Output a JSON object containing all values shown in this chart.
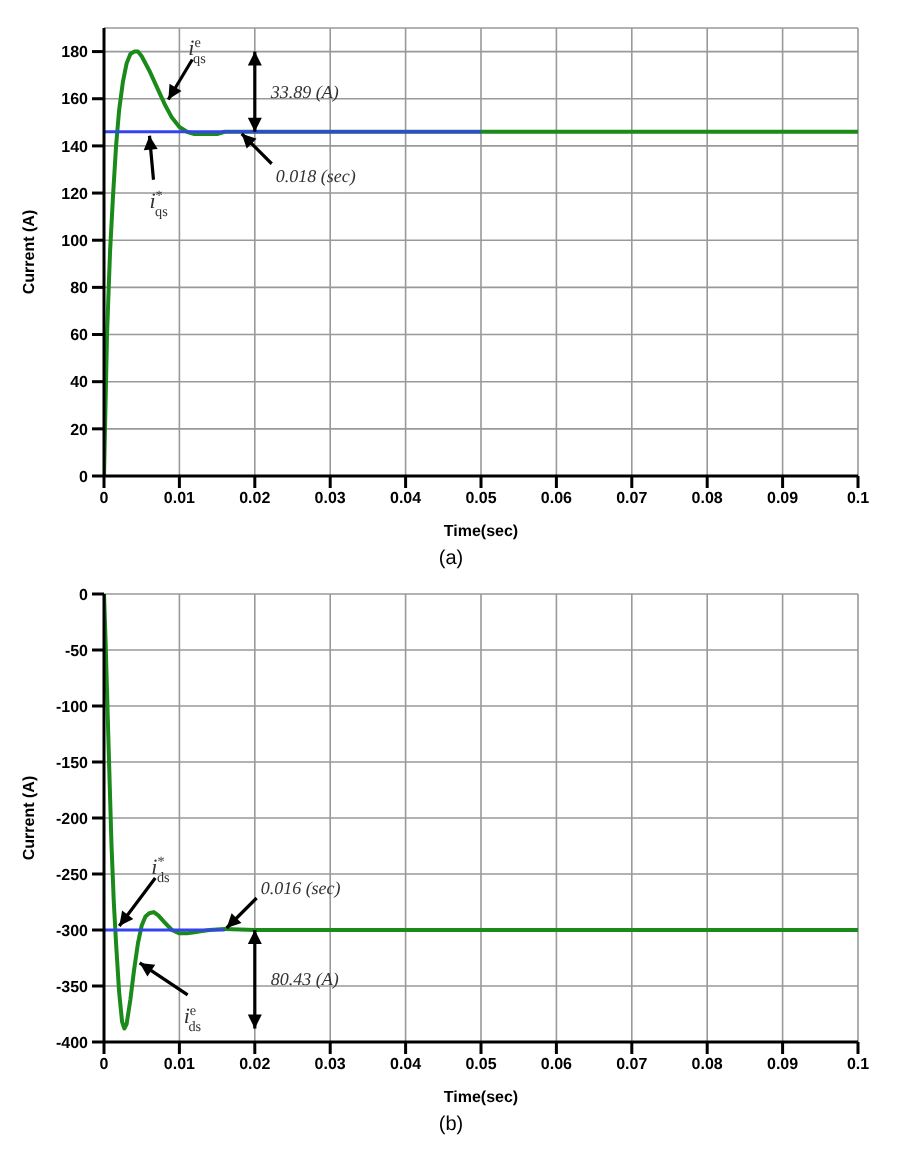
{
  "chart_data": [
    {
      "type": "line",
      "xlabel": "Time(sec)",
      "ylabel": "Current (A)",
      "xlim": [
        0,
        0.1
      ],
      "ylim": [
        0,
        190
      ],
      "xticks": [
        0,
        0.01,
        0.02,
        0.03,
        0.04,
        0.05,
        0.06,
        0.07,
        0.08,
        0.09,
        0.1
      ],
      "yticks": [
        0,
        20,
        40,
        60,
        80,
        100,
        120,
        140,
        160,
        180
      ],
      "grid": true,
      "series": [
        {
          "name": "i$^{*}$$_{qs}$",
          "color": "#3344ee",
          "x": [
            0,
            0.05
          ],
          "values": [
            146,
            146
          ]
        },
        {
          "name": "i$^{e}$$_{qs}$",
          "color": "#1a8a1a",
          "x": [
            0,
            0.0004,
            0.0008,
            0.0012,
            0.0016,
            0.002,
            0.0025,
            0.003,
            0.0035,
            0.004,
            0.0045,
            0.005,
            0.006,
            0.007,
            0.008,
            0.009,
            0.01,
            0.011,
            0.012,
            0.013,
            0.014,
            0.015,
            0.016,
            0.018,
            0.02,
            0.1
          ],
          "values": [
            0,
            60,
            95,
            119,
            140,
            155,
            167,
            175,
            179,
            180,
            180,
            178,
            172,
            165,
            158,
            152,
            148,
            146,
            145,
            145,
            145,
            145,
            146,
            146,
            146,
            146
          ]
        }
      ],
      "annotations": [
        "33.89 (A)",
        {
          "text": "0.018 (sec)",
          "x": 0.018,
          "y": 146
        },
        "(a)"
      ]
    },
    {
      "type": "line",
      "xlabel": "Time(sec)",
      "ylabel": "Current (A)",
      "xlim": [
        0,
        0.1
      ],
      "ylim": [
        -400,
        0
      ],
      "xticks": [
        0,
        0.01,
        0.02,
        0.03,
        0.04,
        0.05,
        0.06,
        0.07,
        0.08,
        0.09,
        0.1
      ],
      "yticks": [
        -400,
        -350,
        -300,
        -250,
        -200,
        -150,
        -100,
        -50,
        0
      ],
      "grid": true,
      "series": [
        {
          "name": "i$^{*}$$_{ds}$",
          "color": "#3344ee",
          "x": [
            0,
            0.016
          ],
          "values": [
            -300,
            -300
          ]
        },
        {
          "name": "i$^{e}$$_{ds}$",
          "color": "#1a8a1a",
          "x": [
            0,
            0.0002,
            0.0005,
            0.0008,
            0.001,
            0.0013,
            0.0016,
            0.002,
            0.0024,
            0.0027,
            0.003,
            0.0035,
            0.004,
            0.0045,
            0.005,
            0.0055,
            0.006,
            0.0066,
            0.0072,
            0.008,
            0.009,
            0.01,
            0.011,
            0.012,
            0.013,
            0.014,
            0.016,
            0.02,
            0.1
          ],
          "values": [
            0,
            -40,
            -110,
            -180,
            -225,
            -275,
            -312,
            -355,
            -382,
            -388,
            -384,
            -362,
            -335,
            -312,
            -296,
            -288,
            -285,
            -284,
            -287,
            -293,
            -300,
            -303,
            -303,
            -302,
            -301,
            -300,
            -299,
            -300,
            -300
          ]
        }
      ],
      "annotations": [
        "80.43 (A)",
        {
          "text": "0.016 (sec)",
          "x": 0.016,
          "y": -300
        },
        "(b)"
      ]
    }
  ]
}
